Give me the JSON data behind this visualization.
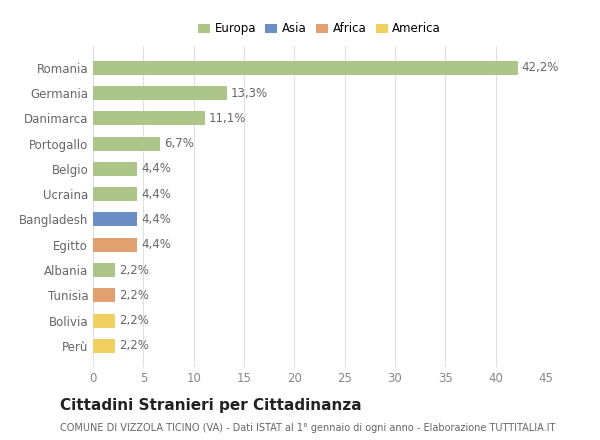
{
  "categories": [
    "Romania",
    "Germania",
    "Danimarca",
    "Portogallo",
    "Belgio",
    "Ucraina",
    "Bangladesh",
    "Egitto",
    "Albania",
    "Tunisia",
    "Bolivia",
    "Perù"
  ],
  "values": [
    42.2,
    13.3,
    11.1,
    6.7,
    4.4,
    4.4,
    4.4,
    4.4,
    2.2,
    2.2,
    2.2,
    2.2
  ],
  "percentages": [
    "42,2%",
    "13,3%",
    "11,1%",
    "6,7%",
    "4,4%",
    "4,4%",
    "4,4%",
    "4,4%",
    "2,2%",
    "2,2%",
    "2,2%",
    "2,2%"
  ],
  "continent": [
    "Europa",
    "Europa",
    "Europa",
    "Europa",
    "Europa",
    "Europa",
    "Asia",
    "Africa",
    "Europa",
    "Africa",
    "America",
    "America"
  ],
  "colors": {
    "Europa": "#aec58a",
    "Asia": "#6b8ec4",
    "Africa": "#e0a070",
    "America": "#f0d060"
  },
  "legend_order": [
    "Europa",
    "Asia",
    "Africa",
    "America"
  ],
  "title": "Cittadini Stranieri per Cittadinanza",
  "subtitle": "COMUNE DI VIZZOLA TICINO (VA) - Dati ISTAT al 1° gennaio di ogni anno - Elaborazione TUTTITALIA.IT",
  "xlim": [
    0,
    45
  ],
  "xticks": [
    0,
    5,
    10,
    15,
    20,
    25,
    30,
    35,
    40,
    45
  ],
  "background_color": "#ffffff",
  "grid_color": "#e0e0e0",
  "bar_height": 0.55,
  "label_fontsize": 8.5,
  "tick_fontsize": 8.5,
  "title_fontsize": 11,
  "subtitle_fontsize": 7
}
